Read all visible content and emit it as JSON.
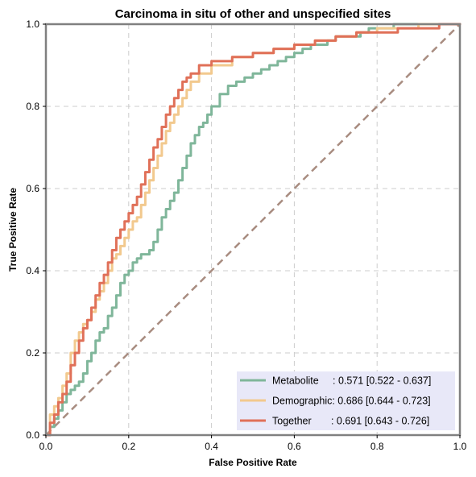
{
  "chart_data": {
    "type": "line",
    "title": "Carcinoma in situ of other and unspecified sites",
    "xlabel": "False Positive Rate",
    "ylabel": "True Positive Rate",
    "xlim": [
      0,
      1
    ],
    "ylim": [
      0,
      1
    ],
    "grid": true,
    "legend_position": "bottom-right",
    "x_ticks": [
      "0.0",
      "0.2",
      "0.4",
      "0.6",
      "0.8",
      "1.0"
    ],
    "y_ticks": [
      "0.0",
      "0.2",
      "0.4",
      "0.6",
      "0.8",
      "1.0"
    ],
    "colors": {
      "metabolite": "#7fb69a",
      "demographic": "#f2c98e",
      "together": "#e07058",
      "diagonal": "#a88c80",
      "grid": "#cccccc",
      "frame": "#808080",
      "legend_bg": "#e8e8f8"
    },
    "series": [
      {
        "name": "Metabolite",
        "legend_label": "Metabolite     : 0.571 [0.522 - 0.637]",
        "color_key": "metabolite",
        "x": [
          0,
          0.01,
          0.02,
          0.03,
          0.04,
          0.05,
          0.06,
          0.07,
          0.08,
          0.09,
          0.1,
          0.11,
          0.12,
          0.13,
          0.14,
          0.15,
          0.16,
          0.17,
          0.18,
          0.19,
          0.2,
          0.21,
          0.22,
          0.23,
          0.24,
          0.25,
          0.26,
          0.27,
          0.28,
          0.29,
          0.3,
          0.31,
          0.32,
          0.33,
          0.34,
          0.35,
          0.36,
          0.37,
          0.38,
          0.39,
          0.4,
          0.42,
          0.44,
          0.46,
          0.48,
          0.5,
          0.52,
          0.54,
          0.56,
          0.58,
          0.6,
          0.62,
          0.64,
          0.66,
          0.68,
          0.7,
          0.72,
          0.74,
          0.76,
          0.78,
          0.8,
          0.82,
          0.84,
          0.86,
          0.88,
          0.9,
          0.92,
          0.94,
          0.96,
          0.98,
          1.0
        ],
        "y": [
          0,
          0.02,
          0.04,
          0.06,
          0.08,
          0.1,
          0.11,
          0.12,
          0.13,
          0.15,
          0.18,
          0.2,
          0.23,
          0.25,
          0.26,
          0.29,
          0.31,
          0.34,
          0.37,
          0.39,
          0.4,
          0.42,
          0.43,
          0.44,
          0.44,
          0.45,
          0.47,
          0.5,
          0.53,
          0.55,
          0.57,
          0.59,
          0.62,
          0.65,
          0.68,
          0.71,
          0.73,
          0.75,
          0.76,
          0.78,
          0.8,
          0.83,
          0.85,
          0.86,
          0.87,
          0.88,
          0.89,
          0.9,
          0.91,
          0.92,
          0.93,
          0.94,
          0.95,
          0.95,
          0.96,
          0.97,
          0.97,
          0.97,
          0.98,
          0.99,
          0.99,
          0.99,
          1.0,
          1.0,
          1.0,
          1.0,
          1.0,
          1.0,
          1.0,
          1.0,
          1.0
        ]
      },
      {
        "name": "Demographic",
        "legend_label": "Demographic: 0.686 [0.644 - 0.723]",
        "color_key": "demographic",
        "x": [
          0,
          0.01,
          0.02,
          0.03,
          0.04,
          0.05,
          0.06,
          0.07,
          0.08,
          0.09,
          0.1,
          0.11,
          0.12,
          0.13,
          0.14,
          0.15,
          0.16,
          0.17,
          0.18,
          0.19,
          0.2,
          0.21,
          0.22,
          0.23,
          0.24,
          0.25,
          0.26,
          0.27,
          0.28,
          0.29,
          0.3,
          0.31,
          0.32,
          0.33,
          0.34,
          0.35,
          0.37,
          0.4,
          0.45,
          0.5,
          0.55,
          0.6,
          0.65,
          0.7,
          0.75,
          0.8,
          0.85,
          0.9,
          0.95,
          1.0
        ],
        "y": [
          0,
          0.05,
          0.07,
          0.09,
          0.12,
          0.15,
          0.2,
          0.23,
          0.25,
          0.27,
          0.28,
          0.3,
          0.33,
          0.35,
          0.37,
          0.4,
          0.43,
          0.44,
          0.46,
          0.48,
          0.5,
          0.52,
          0.53,
          0.56,
          0.59,
          0.62,
          0.65,
          0.68,
          0.71,
          0.74,
          0.76,
          0.78,
          0.8,
          0.82,
          0.84,
          0.86,
          0.88,
          0.9,
          0.92,
          0.93,
          0.94,
          0.95,
          0.96,
          0.97,
          0.98,
          0.99,
          0.99,
          1.0,
          1.0,
          1.0
        ]
      },
      {
        "name": "Together",
        "legend_label": "Together       : 0.691 [0.643 - 0.726]",
        "color_key": "together",
        "x": [
          0,
          0.01,
          0.02,
          0.03,
          0.04,
          0.05,
          0.06,
          0.07,
          0.08,
          0.09,
          0.1,
          0.11,
          0.12,
          0.13,
          0.14,
          0.15,
          0.16,
          0.17,
          0.18,
          0.19,
          0.2,
          0.21,
          0.22,
          0.23,
          0.24,
          0.25,
          0.26,
          0.27,
          0.28,
          0.29,
          0.3,
          0.31,
          0.32,
          0.33,
          0.34,
          0.35,
          0.37,
          0.4,
          0.45,
          0.5,
          0.55,
          0.6,
          0.65,
          0.7,
          0.75,
          0.8,
          0.85,
          0.9,
          0.95,
          1.0
        ],
        "y": [
          0,
          0.03,
          0.05,
          0.08,
          0.1,
          0.13,
          0.17,
          0.2,
          0.23,
          0.26,
          0.28,
          0.31,
          0.34,
          0.37,
          0.39,
          0.42,
          0.45,
          0.48,
          0.5,
          0.52,
          0.54,
          0.56,
          0.58,
          0.61,
          0.64,
          0.67,
          0.7,
          0.72,
          0.75,
          0.78,
          0.8,
          0.82,
          0.84,
          0.86,
          0.87,
          0.88,
          0.9,
          0.91,
          0.92,
          0.93,
          0.94,
          0.95,
          0.96,
          0.97,
          0.98,
          0.98,
          0.99,
          0.99,
          1.0,
          1.0
        ]
      }
    ],
    "reference_line": {
      "name": "chance",
      "x": [
        0,
        1
      ],
      "y": [
        0,
        1
      ],
      "style": "dashed"
    }
  }
}
